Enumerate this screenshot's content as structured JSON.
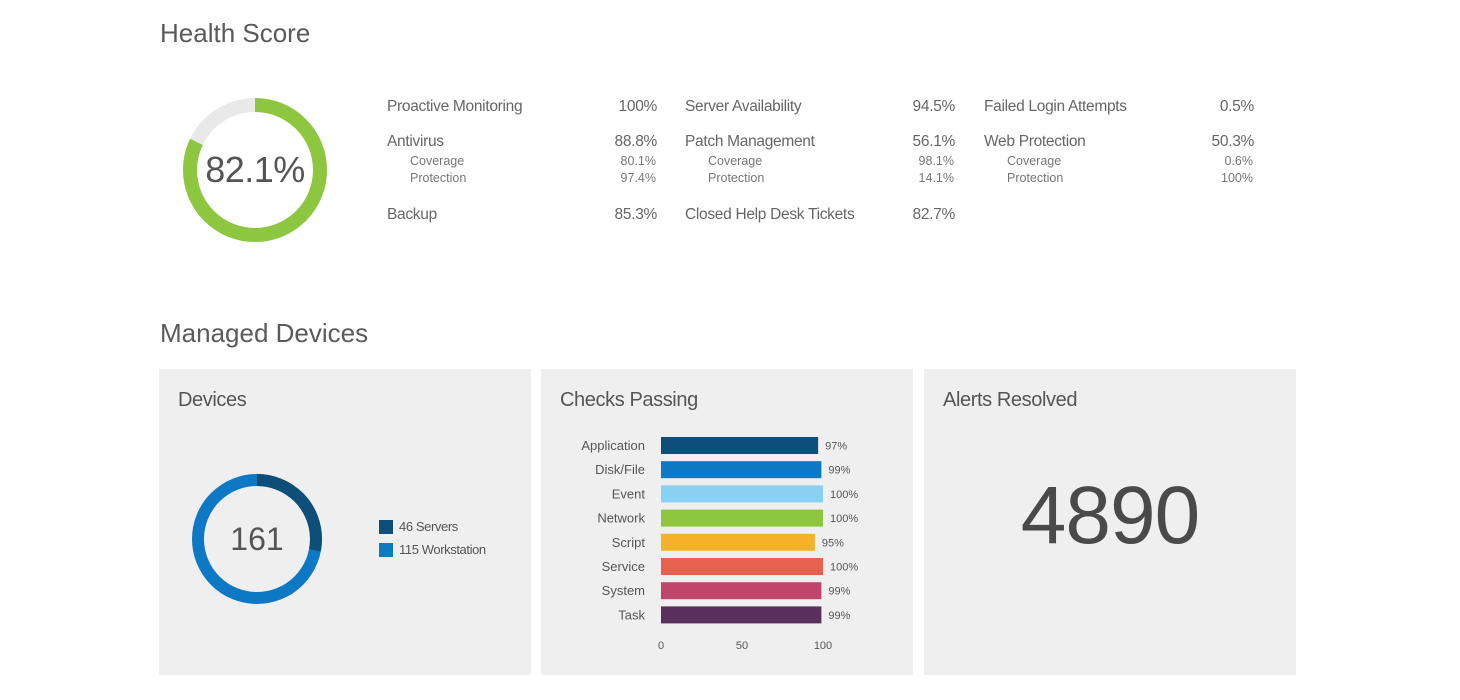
{
  "health": {
    "title": "Health Score",
    "score_label": "82.1%",
    "score_fraction": 0.821,
    "ring_color": "#8dc63f",
    "track_color": "#e9e9e9",
    "columns": [
      {
        "top": {
          "label": "Proactive Monitoring",
          "value": "100%"
        },
        "mid": {
          "label": "Antivirus",
          "value": "88.8%",
          "subs": [
            {
              "label": "Coverage",
              "value": "80.1%"
            },
            {
              "label": "Protection",
              "value": "97.4%"
            }
          ]
        },
        "bot": {
          "label": "Backup",
          "value": "85.3%"
        }
      },
      {
        "top": {
          "label": "Server Availability",
          "value": "94.5%"
        },
        "mid": {
          "label": "Patch Management",
          "value": "56.1%",
          "subs": [
            {
              "label": "Coverage",
              "value": "98.1%"
            },
            {
              "label": "Protection",
              "value": "14.1%"
            }
          ]
        },
        "bot": {
          "label": "Closed Help Desk Tickets",
          "value": "82.7%"
        }
      },
      {
        "top": {
          "label": "Failed Login Attempts",
          "value": "0.5%"
        },
        "mid": {
          "label": "Web Protection",
          "value": "50.3%",
          "subs": [
            {
              "label": "Coverage",
              "value": "0.6%"
            },
            {
              "label": "Protection",
              "value": "100%"
            }
          ]
        }
      }
    ]
  },
  "managed": {
    "title": "Managed Devices",
    "devices": {
      "title": "Devices",
      "total": "161",
      "legend": [
        {
          "label": "46 Servers",
          "count": 46,
          "color": "#0d4f79"
        },
        {
          "label": "115 Workstation",
          "count": 115,
          "color": "#0d78c3"
        }
      ]
    },
    "checks": {
      "title": "Checks Passing"
    },
    "alerts": {
      "title": "Alerts Resolved",
      "value": "4890"
    }
  },
  "chart_data": {
    "type": "bar",
    "orientation": "horizontal",
    "title": "Checks Passing",
    "categories": [
      "Application",
      "Disk/File",
      "Event",
      "Network",
      "Script",
      "Service",
      "System",
      "Task"
    ],
    "values": [
      97,
      99,
      100,
      100,
      95,
      100,
      99,
      99
    ],
    "value_labels": [
      "97%",
      "99%",
      "100%",
      "100%",
      "95%",
      "100%",
      "99%",
      "99%"
    ],
    "colors": [
      "#0d4f79",
      "#0d78c3",
      "#8ad0f3",
      "#8dc63f",
      "#f6b12a",
      "#e8614e",
      "#c0456c",
      "#5a2f5e"
    ],
    "xlim": [
      0,
      100
    ],
    "xticks": [
      "0",
      "50",
      "100"
    ],
    "grid": false
  }
}
